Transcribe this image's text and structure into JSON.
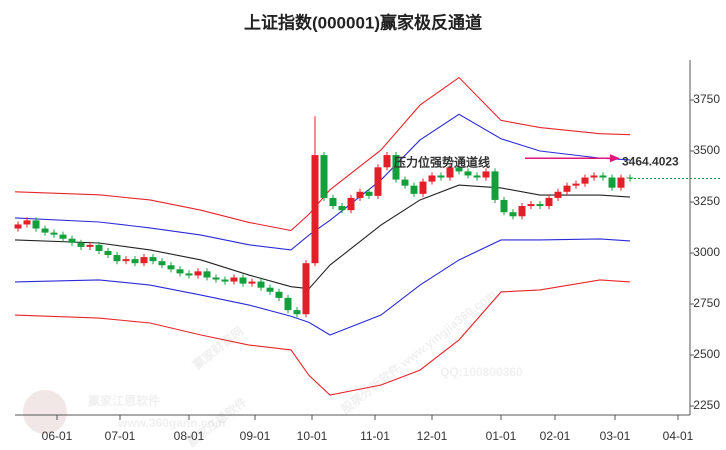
{
  "chart_data": {
    "type": "candlestick",
    "title": "上证指数(000001)赢家极反通道",
    "xlim": [
      -14,
      211
    ],
    "ylim": [
      2206,
      3946
    ],
    "yticks": [
      2250,
      2500,
      2750,
      3000,
      3250,
      3500,
      3750
    ],
    "xticks": [
      {
        "value": 0,
        "label": "06-01"
      },
      {
        "value": 21,
        "label": "07-01"
      },
      {
        "value": 44,
        "label": "08-01"
      },
      {
        "value": 66,
        "label": "09-01"
      },
      {
        "value": 85,
        "label": "10-01"
      },
      {
        "value": 106,
        "label": "11-01"
      },
      {
        "value": 125,
        "label": "12-01"
      },
      {
        "value": 148,
        "label": "01-01"
      },
      {
        "value": 166,
        "label": "02-01"
      },
      {
        "value": 186,
        "label": "03-01"
      },
      {
        "value": 207,
        "label": "04-01"
      }
    ],
    "up_color": "#e3202a",
    "down_color": "#13a03c",
    "candles": {
      "x": [
        -13,
        -10,
        -7,
        -4,
        -1,
        2,
        5,
        8,
        11,
        14,
        17,
        20,
        23,
        26,
        29,
        32,
        35,
        38,
        41,
        44,
        47,
        50,
        53,
        56,
        59,
        62,
        65,
        68,
        71,
        74,
        77,
        80,
        83,
        86,
        89,
        92,
        95,
        98,
        101,
        104,
        107,
        110,
        113,
        116,
        119,
        122,
        125,
        128,
        131,
        134,
        137,
        140,
        143,
        146,
        149,
        152,
        155,
        158,
        161,
        164,
        167,
        170,
        173,
        176,
        179,
        182,
        185,
        188,
        191
      ],
      "open": [
        3120,
        3140,
        3160,
        3120,
        3100,
        3090,
        3070,
        3050,
        3030,
        3040,
        3010,
        2990,
        2960,
        2970,
        2950,
        2980,
        2960,
        2940,
        2920,
        2900,
        2890,
        2910,
        2880,
        2870,
        2860,
        2880,
        2850,
        2860,
        2830,
        2810,
        2780,
        2720,
        2700,
        2950,
        3480,
        3270,
        3230,
        3210,
        3270,
        3300,
        3280,
        3420,
        3480,
        3360,
        3330,
        3290,
        3350,
        3380,
        3370,
        3420,
        3400,
        3380,
        3370,
        3400,
        3260,
        3200,
        3180,
        3230,
        3240,
        3230,
        3270,
        3300,
        3330,
        3340,
        3370,
        3380,
        3370,
        3320,
        3370
      ],
      "high": [
        3155,
        3175,
        3175,
        3135,
        3115,
        3105,
        3085,
        3065,
        3055,
        3055,
        3025,
        3005,
        2985,
        2985,
        2995,
        2995,
        2975,
        2955,
        2935,
        2915,
        2925,
        2925,
        2895,
        2885,
        2895,
        2895,
        2875,
        2875,
        2845,
        2825,
        2795,
        2735,
        2965,
        3670,
        3495,
        3285,
        3245,
        3285,
        3315,
        3315,
        3435,
        3495,
        3495,
        3375,
        3345,
        3365,
        3395,
        3395,
        3435,
        3435,
        3415,
        3395,
        3415,
        3415,
        3275,
        3215,
        3245,
        3255,
        3255,
        3285,
        3315,
        3345,
        3355,
        3385,
        3395,
        3395,
        3385,
        3385,
        3385
      ],
      "low": [
        3105,
        3125,
        3105,
        3085,
        3075,
        3055,
        3035,
        3015,
        3015,
        2995,
        2975,
        2945,
        2945,
        2935,
        2935,
        2945,
        2925,
        2905,
        2885,
        2875,
        2875,
        2865,
        2855,
        2845,
        2845,
        2835,
        2835,
        2815,
        2795,
        2765,
        2705,
        2685,
        2685,
        2935,
        3255,
        3215,
        3195,
        3195,
        3255,
        3265,
        3265,
        3405,
        3345,
        3315,
        3275,
        3275,
        3335,
        3355,
        3355,
        3385,
        3365,
        3355,
        3355,
        3245,
        3185,
        3165,
        3165,
        3215,
        3215,
        3215,
        3255,
        3285,
        3315,
        3325,
        3355,
        3355,
        3305,
        3305,
        3350
      ],
      "close": [
        3140,
        3160,
        3120,
        3100,
        3090,
        3070,
        3050,
        3030,
        3040,
        3010,
        2990,
        2960,
        2970,
        2950,
        2980,
        2960,
        2940,
        2920,
        2900,
        2890,
        2910,
        2880,
        2870,
        2860,
        2880,
        2850,
        2860,
        2830,
        2810,
        2780,
        2720,
        2700,
        2950,
        3480,
        3270,
        3230,
        3210,
        3270,
        3300,
        3280,
        3420,
        3480,
        3360,
        3330,
        3290,
        3350,
        3380,
        3370,
        3420,
        3400,
        3380,
        3370,
        3400,
        3260,
        3200,
        3180,
        3230,
        3240,
        3230,
        3270,
        3300,
        3330,
        3340,
        3370,
        3380,
        3370,
        3320,
        3370,
        3365
      ]
    },
    "channel_x": [
      -14,
      14,
      31,
      48,
      64,
      78,
      84,
      91,
      108,
      121,
      134,
      148,
      161,
      181,
      191
    ],
    "channels": [
      {
        "color": "#e8262c",
        "values": [
          3300,
          3285,
          3260,
          3210,
          3150,
          3110,
          3190,
          3310,
          3505,
          3725,
          3860,
          3650,
          3615,
          3585,
          3580
        ]
      },
      {
        "color": "#2b2bd8",
        "values": [
          3172,
          3152,
          3123,
          3088,
          3040,
          3015,
          3088,
          3160,
          3358,
          3554,
          3680,
          3560,
          3500,
          3465,
          3456
        ]
      },
      {
        "color": "#222222",
        "values": [
          3064,
          3049,
          3015,
          2966,
          2892,
          2835,
          2825,
          2941,
          3137,
          3260,
          3333,
          3319,
          3284,
          3284,
          3274
        ]
      },
      {
        "color": "#2b2bd8",
        "values": [
          2858,
          2868,
          2843,
          2794,
          2745,
          2690,
          2660,
          2598,
          2696,
          2843,
          2966,
          3064,
          3064,
          3069,
          3059
        ]
      },
      {
        "color": "#e8262c",
        "values": [
          2696,
          2681,
          2657,
          2598,
          2549,
          2525,
          2400,
          2304,
          2353,
          2426,
          2574,
          2809,
          2819,
          2868,
          2858
        ]
      }
    ],
    "annotation": {
      "text": "压力位强势通道线",
      "value": 3464.4023,
      "color": "#e0157a"
    },
    "watermarks": [
      "赢家财富网",
      "股票分析软件 www.yingjia360.com",
      "赢家江恩软件",
      "QQ:100800360",
      "赢家江恩软件",
      "www.360gann.com"
    ]
  }
}
